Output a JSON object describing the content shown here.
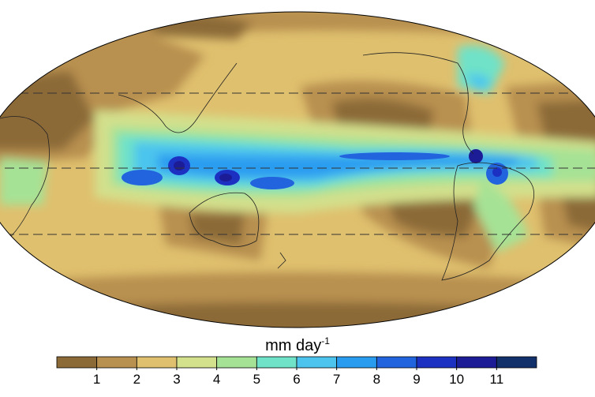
{
  "colorbar": {
    "label": "mm day",
    "label_exponent": "-1",
    "ticks": [
      1,
      2,
      3,
      4,
      5,
      6,
      7,
      8,
      9,
      10,
      11
    ],
    "colors": [
      "#8c6a37",
      "#b8904f",
      "#dfc06e",
      "#d3e08c",
      "#a6e295",
      "#6fe2c8",
      "#4cc4ee",
      "#2a9cf0",
      "#2263de",
      "#1c30c2",
      "#1c1c96",
      "#12306a"
    ]
  }
}
